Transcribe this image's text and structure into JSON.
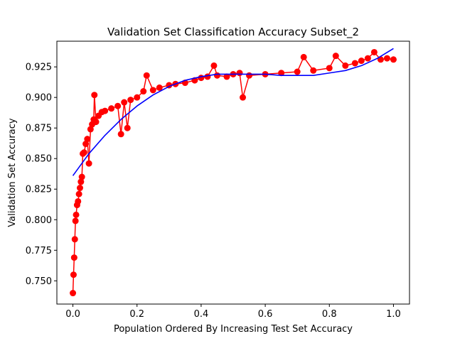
{
  "chart_data": {
    "type": "line",
    "title": "Validation Set Classification Accuracy Subset_2",
    "xlabel": "Population Ordered By Increasing Test Set Accuracy",
    "ylabel": "Validation Set Accuracy",
    "xlim": [
      -0.05,
      1.05
    ],
    "ylim": [
      0.731,
      0.946
    ],
    "xticks": [
      0.0,
      0.2,
      0.4,
      0.6,
      0.8,
      1.0
    ],
    "xtick_labels": [
      "0.0",
      "0.2",
      "0.4",
      "0.6",
      "0.8",
      "1.0"
    ],
    "yticks": [
      0.75,
      0.775,
      0.8,
      0.825,
      0.85,
      0.875,
      0.9,
      0.925
    ],
    "ytick_labels": [
      "0.750",
      "0.775",
      "0.800",
      "0.825",
      "0.850",
      "0.875",
      "0.900",
      "0.925"
    ],
    "grid": false,
    "legend": null,
    "series": [
      {
        "style": "line-with-markers",
        "color": "#ff0000",
        "anchor_points": [
          [
            0.0,
            0.74
          ],
          [
            0.002,
            0.755
          ],
          [
            0.004,
            0.769
          ],
          [
            0.006,
            0.784
          ],
          [
            0.008,
            0.799
          ],
          [
            0.01,
            0.804
          ],
          [
            0.013,
            0.812
          ],
          [
            0.016,
            0.815
          ],
          [
            0.019,
            0.821
          ],
          [
            0.022,
            0.826
          ],
          [
            0.025,
            0.831
          ],
          [
            0.028,
            0.835
          ],
          [
            0.031,
            0.854
          ],
          [
            0.035,
            0.855
          ],
          [
            0.04,
            0.862
          ],
          [
            0.045,
            0.866
          ],
          [
            0.05,
            0.846
          ],
          [
            0.055,
            0.874
          ],
          [
            0.06,
            0.878
          ],
          [
            0.065,
            0.882
          ],
          [
            0.067,
            0.902
          ],
          [
            0.072,
            0.88
          ],
          [
            0.08,
            0.885
          ],
          [
            0.09,
            0.888
          ],
          [
            0.1,
            0.889
          ],
          [
            0.12,
            0.891
          ],
          [
            0.14,
            0.893
          ],
          [
            0.15,
            0.87
          ],
          [
            0.16,
            0.896
          ],
          [
            0.17,
            0.875
          ],
          [
            0.18,
            0.898
          ],
          [
            0.2,
            0.9
          ],
          [
            0.22,
            0.905
          ],
          [
            0.23,
            0.918
          ],
          [
            0.25,
            0.906
          ],
          [
            0.27,
            0.908
          ],
          [
            0.3,
            0.91
          ],
          [
            0.32,
            0.911
          ],
          [
            0.35,
            0.912
          ],
          [
            0.38,
            0.914
          ],
          [
            0.4,
            0.916
          ],
          [
            0.42,
            0.917
          ],
          [
            0.44,
            0.926
          ],
          [
            0.45,
            0.918
          ],
          [
            0.48,
            0.917
          ],
          [
            0.5,
            0.919
          ],
          [
            0.52,
            0.92
          ],
          [
            0.53,
            0.9
          ],
          [
            0.55,
            0.918
          ],
          [
            0.6,
            0.919
          ],
          [
            0.65,
            0.92
          ],
          [
            0.7,
            0.921
          ],
          [
            0.72,
            0.933
          ],
          [
            0.75,
            0.922
          ],
          [
            0.8,
            0.924
          ],
          [
            0.82,
            0.934
          ],
          [
            0.85,
            0.926
          ],
          [
            0.88,
            0.928
          ],
          [
            0.9,
            0.93
          ],
          [
            0.92,
            0.932
          ],
          [
            0.94,
            0.937
          ],
          [
            0.96,
            0.931
          ],
          [
            0.98,
            0.932
          ],
          [
            1.0,
            0.931
          ]
        ]
      },
      {
        "style": "line",
        "color": "#0000ff",
        "anchor_points": [
          [
            0.0,
            0.836
          ],
          [
            0.05,
            0.854
          ],
          [
            0.1,
            0.869
          ],
          [
            0.15,
            0.882
          ],
          [
            0.2,
            0.893
          ],
          [
            0.25,
            0.902
          ],
          [
            0.3,
            0.909
          ],
          [
            0.35,
            0.914
          ],
          [
            0.4,
            0.917
          ],
          [
            0.45,
            0.919
          ],
          [
            0.5,
            0.919
          ],
          [
            0.55,
            0.919
          ],
          [
            0.6,
            0.919
          ],
          [
            0.65,
            0.918
          ],
          [
            0.7,
            0.918
          ],
          [
            0.75,
            0.918
          ],
          [
            0.8,
            0.92
          ],
          [
            0.85,
            0.922
          ],
          [
            0.9,
            0.926
          ],
          [
            0.95,
            0.932
          ],
          [
            1.0,
            0.94
          ]
        ]
      }
    ]
  }
}
